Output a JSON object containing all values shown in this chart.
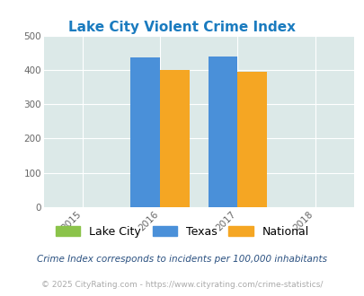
{
  "title": "Lake City Violent Crime Index",
  "title_color": "#1a7bbf",
  "years": [
    2015,
    2016,
    2017,
    2018
  ],
  "bar_groups": [
    {
      "year": 2016,
      "lake_city": 0,
      "texas": 435,
      "national": 399
    },
    {
      "year": 2017,
      "lake_city": 0,
      "texas": 438,
      "national": 394
    }
  ],
  "lake_city_color": "#8bc34a",
  "texas_color": "#4a90d9",
  "national_color": "#f5a623",
  "ylim": [
    0,
    500
  ],
  "yticks": [
    0,
    100,
    200,
    300,
    400,
    500
  ],
  "bg_color": "#dce9e8",
  "grid_color": "#ffffff",
  "footnote1": "Crime Index corresponds to incidents per 100,000 inhabitants",
  "footnote2": "© 2025 CityRating.com - https://www.cityrating.com/crime-statistics/",
  "footnote1_color": "#2a5080",
  "footnote2_color": "#aaaaaa",
  "bar_width": 0.38,
  "legend_labels": [
    "Lake City",
    "Texas",
    "National"
  ]
}
